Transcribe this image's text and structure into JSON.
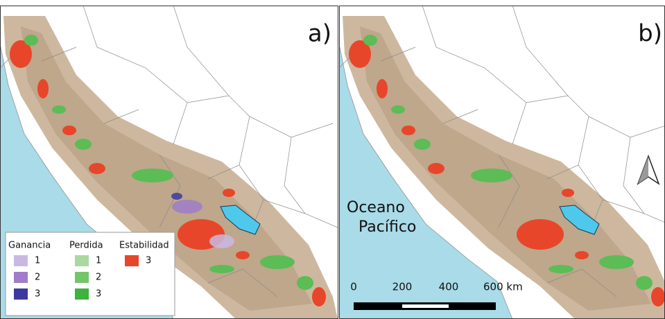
{
  "panels": [
    {
      "label": "a)"
    },
    {
      "label": "b)"
    }
  ],
  "legend": {
    "groups": [
      {
        "title": "Ganancia",
        "items": [
          {
            "label": "1",
            "color": "#c9b9e2"
          },
          {
            "label": "2",
            "color": "#9f7dc9"
          },
          {
            "label": "3",
            "color": "#3c3a9e"
          }
        ]
      },
      {
        "title": "Perdida",
        "items": [
          {
            "label": "1",
            "color": "#a9d8a1"
          },
          {
            "label": "2",
            "color": "#74c46a"
          },
          {
            "label": "3",
            "color": "#3db23d"
          }
        ]
      },
      {
        "title": "Estabilidad",
        "items": [
          {
            "label": "3",
            "color": "#e8462a"
          }
        ]
      }
    ]
  },
  "ocean_label": [
    "Oceano",
    "Pacífico"
  ],
  "scale_bar": {
    "labels": [
      "0",
      "200",
      "400",
      "600 km"
    ]
  }
}
